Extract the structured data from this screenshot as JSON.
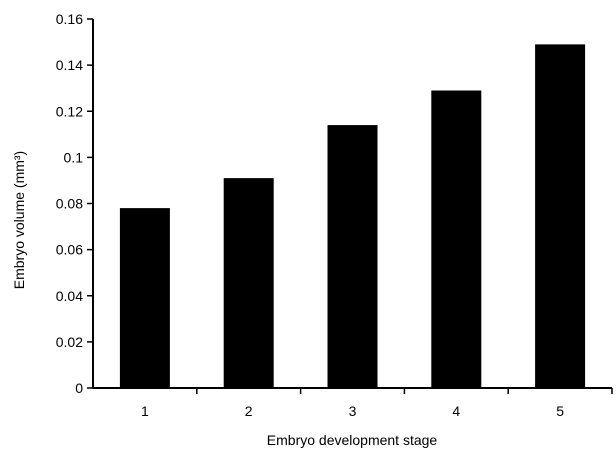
{
  "chart_data": {
    "type": "bar",
    "categories": [
      "1",
      "2",
      "3",
      "4",
      "5"
    ],
    "values": [
      0.078,
      0.091,
      0.114,
      0.129,
      0.149
    ],
    "xlabel": "Embryo development stage",
    "ylabel": "Embryo volume (mm³)",
    "ylim": [
      0,
      0.16
    ],
    "yticks": [
      "0",
      "0.02",
      "0.04",
      "0.06",
      "0.08",
      "0.1",
      "0.12",
      "0.14",
      "0.16"
    ],
    "grid": false,
    "legend": "none",
    "bar_color": "#000000"
  }
}
